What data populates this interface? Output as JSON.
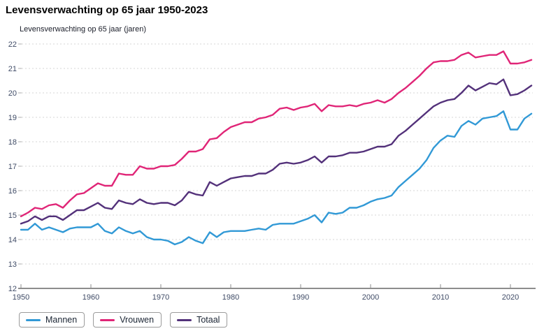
{
  "title": "Levensverwachting op 65 jaar 1950-2023",
  "y_axis_title": "Levensverwachting op 65 jaar (jaren)",
  "legend": [
    {
      "label": "Mannen",
      "color": "#3199d6"
    },
    {
      "label": "Vrouwen",
      "color": "#e02577"
    },
    {
      "label": "Totaal",
      "color": "#53317a"
    }
  ],
  "chart_data": {
    "type": "line",
    "title": "Levensverwachting op 65 jaar 1950-2023",
    "ylabel": "Levensverwachting op 65 jaar (jaren)",
    "xlabel": "",
    "xlim": [
      1950,
      2023
    ],
    "ylim": [
      12,
      22
    ],
    "x_ticks": [
      1950,
      1960,
      1970,
      1980,
      1990,
      2000,
      2010,
      2020
    ],
    "y_ticks": [
      12,
      13,
      14,
      15,
      16,
      17,
      18,
      19,
      20,
      21,
      22
    ],
    "grid": true,
    "legend_position": "bottom-left",
    "x": [
      1950,
      1951,
      1952,
      1953,
      1954,
      1955,
      1956,
      1957,
      1958,
      1959,
      1960,
      1961,
      1962,
      1963,
      1964,
      1965,
      1966,
      1967,
      1968,
      1969,
      1970,
      1971,
      1972,
      1973,
      1974,
      1975,
      1976,
      1977,
      1978,
      1979,
      1980,
      1981,
      1982,
      1983,
      1984,
      1985,
      1986,
      1987,
      1988,
      1989,
      1990,
      1991,
      1992,
      1993,
      1994,
      1995,
      1996,
      1997,
      1998,
      1999,
      2000,
      2001,
      2002,
      2003,
      2004,
      2005,
      2006,
      2007,
      2008,
      2009,
      2010,
      2011,
      2012,
      2013,
      2014,
      2015,
      2016,
      2017,
      2018,
      2019,
      2020,
      2021,
      2022,
      2023
    ],
    "series": [
      {
        "name": "Mannen",
        "color": "#3199d6",
        "values": [
          14.4,
          14.4,
          14.65,
          14.4,
          14.5,
          14.4,
          14.3,
          14.45,
          14.5,
          14.5,
          14.5,
          14.65,
          14.35,
          14.25,
          14.5,
          14.35,
          14.25,
          14.35,
          14.1,
          14.0,
          14.0,
          13.95,
          13.8,
          13.9,
          14.1,
          13.95,
          13.85,
          14.3,
          14.1,
          14.3,
          14.35,
          14.35,
          14.35,
          14.4,
          14.45,
          14.4,
          14.6,
          14.65,
          14.65,
          14.65,
          14.75,
          14.85,
          15.0,
          14.7,
          15.1,
          15.05,
          15.1,
          15.3,
          15.3,
          15.4,
          15.55,
          15.65,
          15.7,
          15.8,
          16.15,
          16.4,
          16.65,
          16.9,
          17.25,
          17.75,
          18.05,
          18.25,
          18.2,
          18.65,
          18.85,
          18.7,
          18.95,
          19.0,
          19.05,
          19.25,
          18.5,
          18.5,
          18.95,
          19.15
        ]
      },
      {
        "name": "Vrouwen",
        "color": "#e02577",
        "values": [
          14.95,
          15.1,
          15.3,
          15.25,
          15.4,
          15.45,
          15.3,
          15.6,
          15.85,
          15.9,
          16.1,
          16.3,
          16.2,
          16.2,
          16.7,
          16.65,
          16.65,
          17.0,
          16.9,
          16.9,
          17.0,
          17.0,
          17.05,
          17.3,
          17.6,
          17.6,
          17.7,
          18.1,
          18.15,
          18.4,
          18.6,
          18.7,
          18.8,
          18.8,
          18.95,
          19.0,
          19.1,
          19.35,
          19.4,
          19.3,
          19.4,
          19.45,
          19.55,
          19.25,
          19.5,
          19.45,
          19.45,
          19.5,
          19.45,
          19.55,
          19.6,
          19.7,
          19.6,
          19.75,
          20.0,
          20.2,
          20.45,
          20.7,
          21.0,
          21.25,
          21.3,
          21.3,
          21.35,
          21.55,
          21.65,
          21.45,
          21.5,
          21.55,
          21.55,
          21.7,
          21.2,
          21.2,
          21.25,
          21.35
        ]
      },
      {
        "name": "Totaal",
        "color": "#53317a",
        "values": [
          14.65,
          14.75,
          14.95,
          14.8,
          14.95,
          14.95,
          14.8,
          15.0,
          15.2,
          15.2,
          15.35,
          15.5,
          15.3,
          15.25,
          15.6,
          15.5,
          15.45,
          15.65,
          15.5,
          15.45,
          15.5,
          15.5,
          15.4,
          15.6,
          15.95,
          15.85,
          15.8,
          16.35,
          16.2,
          16.35,
          16.5,
          16.55,
          16.6,
          16.6,
          16.7,
          16.7,
          16.85,
          17.1,
          17.15,
          17.1,
          17.15,
          17.25,
          17.4,
          17.15,
          17.4,
          17.4,
          17.45,
          17.55,
          17.55,
          17.6,
          17.7,
          17.8,
          17.8,
          17.9,
          18.25,
          18.45,
          18.7,
          18.95,
          19.2,
          19.45,
          19.6,
          19.7,
          19.75,
          20.0,
          20.3,
          20.1,
          20.25,
          20.4,
          20.35,
          20.55,
          19.9,
          19.95,
          20.1,
          20.3
        ]
      }
    ]
  }
}
